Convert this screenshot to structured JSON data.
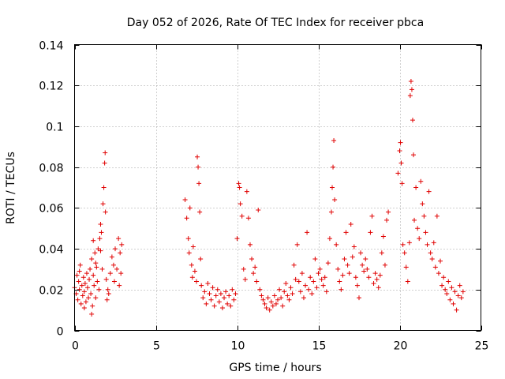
{
  "chart_data": {
    "type": "scatter",
    "title": "Day 052 of 2026, Rate Of TEC Index for receiver pbca",
    "xlabel": "GPS time / hours",
    "ylabel": "ROTI / TECUs",
    "xlim": [
      0,
      25
    ],
    "ylim": [
      0,
      0.14
    ],
    "xticks": [
      0,
      5,
      10,
      15,
      20,
      25
    ],
    "yticks": [
      0,
      0.02,
      0.04,
      0.06,
      0.08,
      0.1,
      0.12,
      0.14
    ],
    "ytick_labels": [
      "0",
      "0.02",
      "0.04",
      "0.06",
      "0.08",
      "0.1",
      "0.12",
      "0.14"
    ],
    "grid": true,
    "marker": "+",
    "color": "#e00000",
    "series": [
      {
        "points": [
          [
            0.0,
            0.021
          ],
          [
            0.1,
            0.018
          ],
          [
            0.15,
            0.027
          ],
          [
            0.2,
            0.015
          ],
          [
            0.25,
            0.024
          ],
          [
            0.3,
            0.02
          ],
          [
            0.35,
            0.032
          ],
          [
            0.4,
            0.013
          ],
          [
            0.45,
            0.022
          ],
          [
            0.5,
            0.017
          ],
          [
            0.55,
            0.026
          ],
          [
            0.6,
            0.019
          ],
          [
            0.65,
            0.023
          ],
          [
            0.7,
            0.014
          ],
          [
            0.75,
            0.028
          ],
          [
            0.8,
            0.021
          ],
          [
            0.85,
            0.016
          ],
          [
            0.9,
            0.025
          ],
          [
            0.95,
            0.03
          ],
          [
            1.0,
            0.018
          ],
          [
            1.05,
            0.035
          ],
          [
            1.1,
            0.012
          ],
          [
            1.15,
            0.027
          ],
          [
            1.2,
            0.022
          ],
          [
            1.25,
            0.038
          ],
          [
            1.3,
            0.016
          ],
          [
            1.35,
            0.031
          ],
          [
            1.4,
            0.024
          ],
          [
            1.45,
            0.04
          ],
          [
            1.5,
            0.02
          ],
          [
            1.55,
            0.045
          ],
          [
            1.6,
            0.052
          ],
          [
            1.65,
            0.048
          ],
          [
            1.7,
            0.03
          ],
          [
            1.75,
            0.062
          ],
          [
            1.8,
            0.07
          ],
          [
            1.85,
            0.082
          ],
          [
            1.88,
            0.087
          ],
          [
            1.9,
            0.058
          ],
          [
            1.95,
            0.025
          ],
          [
            2.0,
            0.015
          ],
          [
            2.05,
            0.02
          ],
          [
            2.1,
            0.018
          ],
          [
            2.2,
            0.028
          ],
          [
            2.3,
            0.036
          ],
          [
            2.4,
            0.032
          ],
          [
            2.5,
            0.04
          ],
          [
            2.6,
            0.03
          ],
          [
            2.7,
            0.045
          ],
          [
            2.8,
            0.038
          ],
          [
            2.85,
            0.028
          ],
          [
            2.9,
            0.042
          ],
          [
            0.6,
            0.011
          ],
          [
            1.05,
            0.008
          ],
          [
            1.3,
            0.033
          ],
          [
            0.3,
            0.029
          ],
          [
            2.45,
            0.024
          ],
          [
            2.75,
            0.022
          ],
          [
            1.6,
            0.039
          ],
          [
            1.15,
            0.044
          ]
        ]
      },
      {
        "points": [
          [
            6.8,
            0.064
          ],
          [
            6.9,
            0.055
          ],
          [
            7.0,
            0.045
          ],
          [
            7.05,
            0.038
          ],
          [
            7.1,
            0.06
          ],
          [
            7.2,
            0.032
          ],
          [
            7.25,
            0.026
          ],
          [
            7.3,
            0.041
          ],
          [
            7.4,
            0.029
          ],
          [
            7.5,
            0.024
          ],
          [
            7.55,
            0.085
          ],
          [
            7.6,
            0.08
          ],
          [
            7.65,
            0.072
          ],
          [
            7.7,
            0.058
          ],
          [
            7.75,
            0.035
          ],
          [
            7.8,
            0.022
          ],
          [
            7.9,
            0.016
          ],
          [
            8.0,
            0.019
          ],
          [
            8.1,
            0.013
          ],
          [
            8.2,
            0.023
          ],
          [
            8.3,
            0.018
          ],
          [
            8.4,
            0.015
          ],
          [
            8.5,
            0.021
          ],
          [
            8.6,
            0.012
          ],
          [
            8.7,
            0.017
          ],
          [
            8.8,
            0.02
          ],
          [
            8.9,
            0.014
          ],
          [
            9.0,
            0.018
          ],
          [
            9.1,
            0.011
          ],
          [
            9.2,
            0.016
          ],
          [
            9.3,
            0.019
          ],
          [
            9.4,
            0.013
          ],
          [
            9.5,
            0.017
          ],
          [
            9.6,
            0.012
          ],
          [
            9.7,
            0.02
          ],
          [
            9.8,
            0.015
          ],
          [
            9.9,
            0.018
          ],
          [
            10.0,
            0.045
          ],
          [
            10.1,
            0.072
          ],
          [
            10.15,
            0.07
          ],
          [
            10.2,
            0.062
          ],
          [
            10.3,
            0.056
          ],
          [
            10.4,
            0.03
          ],
          [
            10.5,
            0.025
          ],
          [
            10.6,
            0.068
          ],
          [
            10.7,
            0.055
          ],
          [
            10.8,
            0.042
          ],
          [
            10.9,
            0.035
          ],
          [
            11.0,
            0.028
          ],
          [
            11.1,
            0.031
          ],
          [
            11.2,
            0.024
          ],
          [
            11.3,
            0.059
          ],
          [
            11.4,
            0.02
          ],
          [
            11.5,
            0.017
          ],
          [
            11.6,
            0.015
          ]
        ]
      },
      {
        "points": [
          [
            11.7,
            0.013
          ],
          [
            11.8,
            0.011
          ],
          [
            11.9,
            0.016
          ],
          [
            12.0,
            0.01
          ],
          [
            12.1,
            0.014
          ],
          [
            12.2,
            0.012
          ],
          [
            12.3,
            0.017
          ],
          [
            12.4,
            0.013
          ],
          [
            12.5,
            0.015
          ],
          [
            12.6,
            0.02
          ],
          [
            12.7,
            0.016
          ],
          [
            12.8,
            0.012
          ],
          [
            12.9,
            0.019
          ],
          [
            13.0,
            0.023
          ],
          [
            13.1,
            0.017
          ],
          [
            13.2,
            0.015
          ],
          [
            13.3,
            0.021
          ],
          [
            13.4,
            0.018
          ],
          [
            13.5,
            0.032
          ],
          [
            13.6,
            0.025
          ],
          [
            13.7,
            0.042
          ],
          [
            13.8,
            0.024
          ],
          [
            13.9,
            0.019
          ],
          [
            14.0,
            0.028
          ],
          [
            14.1,
            0.016
          ],
          [
            14.2,
            0.022
          ],
          [
            14.3,
            0.048
          ],
          [
            14.4,
            0.02
          ],
          [
            14.5,
            0.026
          ],
          [
            14.6,
            0.018
          ],
          [
            14.7,
            0.024
          ],
          [
            14.8,
            0.035
          ],
          [
            14.9,
            0.021
          ],
          [
            15.0,
            0.028
          ],
          [
            15.1,
            0.03
          ],
          [
            15.2,
            0.025
          ],
          [
            15.3,
            0.022
          ],
          [
            15.4,
            0.026
          ],
          [
            15.5,
            0.019
          ],
          [
            15.6,
            0.033
          ],
          [
            15.7,
            0.045
          ],
          [
            15.8,
            0.058
          ],
          [
            15.85,
            0.07
          ],
          [
            15.9,
            0.08
          ],
          [
            15.95,
            0.093
          ],
          [
            16.0,
            0.064
          ],
          [
            16.1,
            0.042
          ],
          [
            16.2,
            0.03
          ],
          [
            16.3,
            0.024
          ],
          [
            16.4,
            0.02
          ],
          [
            16.5,
            0.027
          ],
          [
            16.6,
            0.035
          ],
          [
            16.7,
            0.048
          ],
          [
            16.8,
            0.032
          ],
          [
            16.9,
            0.028
          ],
          [
            17.0,
            0.052
          ],
          [
            17.1,
            0.036
          ],
          [
            17.2,
            0.041
          ],
          [
            17.3,
            0.026
          ],
          [
            17.4,
            0.022
          ]
        ]
      },
      {
        "points": [
          [
            17.5,
            0.016
          ],
          [
            17.6,
            0.038
          ],
          [
            17.7,
            0.032
          ],
          [
            17.8,
            0.029
          ],
          [
            17.9,
            0.035
          ],
          [
            18.0,
            0.03
          ],
          [
            18.1,
            0.026
          ],
          [
            18.2,
            0.048
          ],
          [
            18.3,
            0.056
          ],
          [
            18.4,
            0.023
          ],
          [
            18.5,
            0.028
          ],
          [
            18.6,
            0.025
          ],
          [
            18.7,
            0.021
          ],
          [
            18.8,
            0.027
          ],
          [
            18.9,
            0.038
          ],
          [
            19.0,
            0.046
          ],
          [
            19.1,
            0.032
          ],
          [
            19.2,
            0.054
          ],
          [
            19.3,
            0.058
          ],
          [
            19.9,
            0.077
          ],
          [
            20.0,
            0.088
          ],
          [
            20.05,
            0.092
          ],
          [
            20.1,
            0.082
          ],
          [
            20.15,
            0.072
          ],
          [
            20.2,
            0.042
          ],
          [
            20.3,
            0.038
          ],
          [
            20.4,
            0.031
          ],
          [
            20.5,
            0.024
          ],
          [
            20.6,
            0.043
          ],
          [
            20.65,
            0.115
          ],
          [
            20.7,
            0.122
          ],
          [
            20.75,
            0.118
          ],
          [
            20.8,
            0.103
          ],
          [
            20.85,
            0.086
          ],
          [
            20.9,
            0.054
          ],
          [
            21.0,
            0.07
          ],
          [
            21.1,
            0.05
          ],
          [
            21.2,
            0.045
          ],
          [
            21.3,
            0.073
          ],
          [
            21.4,
            0.062
          ],
          [
            21.5,
            0.056
          ],
          [
            21.6,
            0.048
          ],
          [
            21.7,
            0.042
          ],
          [
            21.8,
            0.068
          ],
          [
            21.9,
            0.038
          ],
          [
            22.0,
            0.035
          ],
          [
            22.1,
            0.043
          ],
          [
            22.2,
            0.031
          ],
          [
            22.3,
            0.056
          ],
          [
            22.4,
            0.028
          ],
          [
            22.5,
            0.034
          ],
          [
            22.6,
            0.022
          ],
          [
            22.7,
            0.026
          ],
          [
            22.8,
            0.02
          ],
          [
            22.9,
            0.018
          ],
          [
            23.0,
            0.024
          ],
          [
            23.1,
            0.015
          ],
          [
            23.2,
            0.021
          ],
          [
            23.3,
            0.013
          ],
          [
            23.4,
            0.019
          ],
          [
            23.5,
            0.01
          ],
          [
            23.6,
            0.017
          ],
          [
            23.7,
            0.022
          ],
          [
            23.8,
            0.016
          ],
          [
            23.9,
            0.019
          ]
        ]
      }
    ]
  }
}
